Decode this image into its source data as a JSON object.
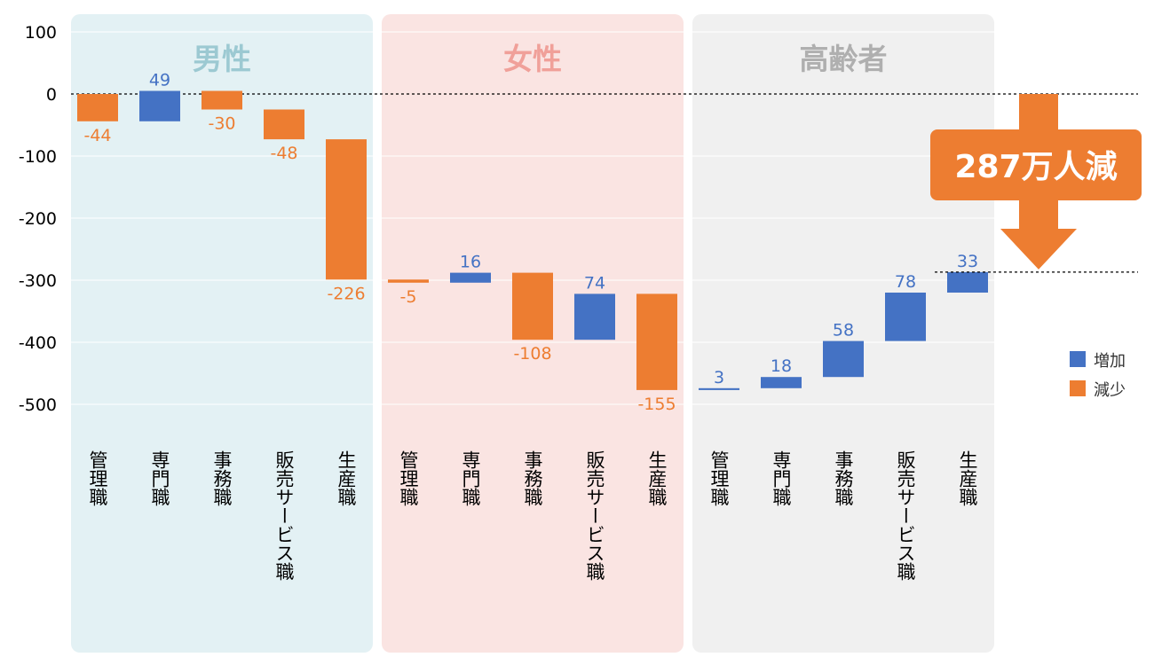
{
  "chart_data": {
    "type": "bar",
    "subtype": "waterfall",
    "ylim": [
      -500,
      100
    ],
    "yticks": [
      100,
      0,
      -100,
      -200,
      -300,
      -400,
      -500
    ],
    "grid": true,
    "groups": [
      {
        "title": "男性",
        "bg": "#E3F1F4",
        "title_color": "#9CC9D2",
        "categories": [
          "管理職",
          "専門職",
          "事務職",
          "販売サービス職",
          "生産職"
        ],
        "values": [
          -44,
          49,
          -30,
          -48,
          -226
        ]
      },
      {
        "title": "女性",
        "bg": "#FAE4E2",
        "title_color": "#F0A099",
        "categories": [
          "管理職",
          "専門職",
          "事務職",
          "販売サービス職",
          "生産職"
        ],
        "values": [
          -5,
          16,
          -108,
          74,
          -155
        ]
      },
      {
        "title": "高齢者",
        "bg": "#F0F0F0",
        "title_color": "#AFAFAF",
        "categories": [
          "管理職",
          "専門職",
          "事務職",
          "販売サービス職",
          "生産職"
        ],
        "values": [
          3,
          18,
          58,
          78,
          33
        ]
      }
    ],
    "legend": [
      {
        "label": "増加",
        "color": "#4472C4"
      },
      {
        "label": "減少",
        "color": "#ED7D31"
      }
    ],
    "legend_position": "right",
    "annotation": {
      "text": "287万人減",
      "color": "#ED7D31",
      "total": -287
    }
  }
}
